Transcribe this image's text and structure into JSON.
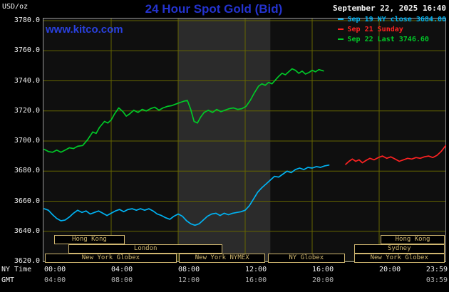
{
  "header": {
    "units_label": "USD/oz",
    "title": "24 Hour Spot Gold (Bid)",
    "datetime": "September 22, 2025 16:40",
    "watermark": "www.kitco.com",
    "legend": [
      {
        "label": "Sep 19 NY close 3684.00",
        "color": "#00b2f2"
      },
      {
        "label": "Sep 21 Sunday",
        "color": "#ff2222"
      },
      {
        "label": "Sep 22 Last 3746.60",
        "color": "#00c828"
      }
    ]
  },
  "colors": {
    "title_blue": "#2433cf",
    "link_blue": "#2940dd",
    "grid_olive": "#666600",
    "frame_gray": "#999999",
    "session_tan": "#cfb670",
    "plot_bg": "#0f0f0f",
    "nymex_band": "#2b2b2b",
    "text_white": "#f2f2f2",
    "gmt_gray": "#b4b4b4"
  },
  "chart_data": {
    "type": "line",
    "title": "24 Hour Spot Gold (Bid)",
    "ylabel": "USD/oz",
    "ylim": [
      3620,
      3780
    ],
    "y_tick_step": 20,
    "y_tick_labels": [
      "3780.0",
      "3760.0",
      "3740.0",
      "3720.0",
      "3700.0",
      "3680.0",
      "3660.0",
      "3640.0",
      "3620.0"
    ],
    "x_axis": {
      "ny_time_label": "NY Time",
      "gmt_label": "GMT",
      "ticks": [
        {
          "t": 0,
          "ny": "00:00",
          "gmt": "04:00"
        },
        {
          "t": 4,
          "ny": "04:00",
          "gmt": "08:00"
        },
        {
          "t": 8,
          "ny": "08:00",
          "gmt": "12:00"
        },
        {
          "t": 12,
          "ny": "12:00",
          "gmt": "16:00"
        },
        {
          "t": 16,
          "ny": "16:00",
          "gmt": "20:00"
        },
        {
          "t": 20,
          "ny": "20:00",
          "gmt": ""
        },
        {
          "t": 23.983,
          "ny": "23:59",
          "gmt": "03:59"
        }
      ]
    },
    "nymex_band_hours": [
      8.0,
      13.5
    ],
    "series": [
      {
        "name": "Sep 19 NY close 3684.00",
        "color": "#00b2f2",
        "points": [
          [
            0,
            3655
          ],
          [
            0.25,
            3654
          ],
          [
            0.5,
            3651
          ],
          [
            0.75,
            3648.5
          ],
          [
            1,
            3647
          ],
          [
            1.25,
            3647.5
          ],
          [
            1.5,
            3649.5
          ],
          [
            1.75,
            3652
          ],
          [
            2,
            3654
          ],
          [
            2.25,
            3652.5
          ],
          [
            2.5,
            3653.5
          ],
          [
            2.75,
            3651.5
          ],
          [
            3,
            3652.5
          ],
          [
            3.25,
            3653.5
          ],
          [
            3.5,
            3652
          ],
          [
            3.75,
            3650.5
          ],
          [
            4,
            3652
          ],
          [
            4.25,
            3653.5
          ],
          [
            4.5,
            3654.5
          ],
          [
            4.75,
            3653
          ],
          [
            5,
            3654.5
          ],
          [
            5.25,
            3655
          ],
          [
            5.5,
            3654
          ],
          [
            5.75,
            3655
          ],
          [
            6,
            3654
          ],
          [
            6.25,
            3655
          ],
          [
            6.5,
            3653.5
          ],
          [
            6.75,
            3651.5
          ],
          [
            7,
            3650.5
          ],
          [
            7.25,
            3649
          ],
          [
            7.5,
            3648
          ],
          [
            7.75,
            3650
          ],
          [
            8,
            3651.5
          ],
          [
            8.25,
            3650
          ],
          [
            8.5,
            3647
          ],
          [
            8.75,
            3645
          ],
          [
            9,
            3644
          ],
          [
            9.25,
            3645
          ],
          [
            9.5,
            3647.5
          ],
          [
            9.75,
            3650
          ],
          [
            10,
            3651.5
          ],
          [
            10.25,
            3652
          ],
          [
            10.5,
            3650.5
          ],
          [
            10.75,
            3652
          ],
          [
            11,
            3651
          ],
          [
            11.25,
            3652
          ],
          [
            11.5,
            3652.5
          ],
          [
            11.75,
            3653
          ],
          [
            12,
            3654
          ],
          [
            12.25,
            3657
          ],
          [
            12.5,
            3661.5
          ],
          [
            12.75,
            3666
          ],
          [
            13,
            3669
          ],
          [
            13.25,
            3671.5
          ],
          [
            13.5,
            3674
          ],
          [
            13.75,
            3676.5
          ],
          [
            14,
            3676
          ],
          [
            14.25,
            3678
          ],
          [
            14.5,
            3680
          ],
          [
            14.75,
            3679
          ],
          [
            15,
            3681
          ],
          [
            15.25,
            3682
          ],
          [
            15.5,
            3681
          ],
          [
            15.75,
            3682.5
          ],
          [
            16,
            3682
          ],
          [
            16.25,
            3683
          ],
          [
            16.5,
            3682.5
          ],
          [
            16.75,
            3683.5
          ],
          [
            17,
            3684
          ]
        ]
      },
      {
        "name": "Sep 21 Sunday",
        "color": "#ff2222",
        "points": [
          [
            18,
            3684.5
          ],
          [
            18.2,
            3686.5
          ],
          [
            18.4,
            3688
          ],
          [
            18.6,
            3686.5
          ],
          [
            18.8,
            3687.5
          ],
          [
            19,
            3685.5
          ],
          [
            19.2,
            3687
          ],
          [
            19.45,
            3688.5
          ],
          [
            19.7,
            3687.5
          ],
          [
            19.95,
            3689
          ],
          [
            20.2,
            3690
          ],
          [
            20.45,
            3688.5
          ],
          [
            20.7,
            3689.5
          ],
          [
            20.95,
            3688
          ],
          [
            21.2,
            3686.5
          ],
          [
            21.45,
            3687.5
          ],
          [
            21.7,
            3688.5
          ],
          [
            21.95,
            3688
          ],
          [
            22.2,
            3689
          ],
          [
            22.45,
            3688.5
          ],
          [
            22.7,
            3689.5
          ],
          [
            22.95,
            3690
          ],
          [
            23.2,
            3689
          ],
          [
            23.45,
            3690.5
          ],
          [
            23.7,
            3693
          ],
          [
            23.98,
            3697
          ]
        ]
      },
      {
        "name": "Sep 22 Last 3746.60",
        "color": "#00c828",
        "points": [
          [
            0,
            3694.5
          ],
          [
            0.25,
            3693
          ],
          [
            0.5,
            3692.5
          ],
          [
            0.75,
            3694
          ],
          [
            1,
            3692.5
          ],
          [
            1.25,
            3694
          ],
          [
            1.5,
            3695.5
          ],
          [
            1.75,
            3695
          ],
          [
            2,
            3696.5
          ],
          [
            2.3,
            3697
          ],
          [
            2.6,
            3701
          ],
          [
            2.9,
            3706
          ],
          [
            3.1,
            3705
          ],
          [
            3.3,
            3709
          ],
          [
            3.6,
            3713
          ],
          [
            3.8,
            3712
          ],
          [
            4,
            3714
          ],
          [
            4.2,
            3718
          ],
          [
            4.45,
            3722
          ],
          [
            4.7,
            3719.5
          ],
          [
            4.9,
            3716.5
          ],
          [
            5.1,
            3718
          ],
          [
            5.35,
            3720.5
          ],
          [
            5.6,
            3719
          ],
          [
            5.85,
            3721
          ],
          [
            6.1,
            3720
          ],
          [
            6.35,
            3721.5
          ],
          [
            6.6,
            3722.5
          ],
          [
            6.85,
            3720.5
          ],
          [
            7.1,
            3722
          ],
          [
            7.35,
            3723
          ],
          [
            7.6,
            3723.5
          ],
          [
            7.85,
            3724.5
          ],
          [
            8.1,
            3725.5
          ],
          [
            8.35,
            3726.5
          ],
          [
            8.55,
            3727
          ],
          [
            8.75,
            3721
          ],
          [
            8.95,
            3713
          ],
          [
            9.15,
            3712
          ],
          [
            9.35,
            3716
          ],
          [
            9.55,
            3719
          ],
          [
            9.8,
            3720.5
          ],
          [
            10.05,
            3719
          ],
          [
            10.3,
            3721
          ],
          [
            10.55,
            3719.5
          ],
          [
            10.8,
            3720.5
          ],
          [
            11.05,
            3721.5
          ],
          [
            11.3,
            3722
          ],
          [
            11.55,
            3721
          ],
          [
            11.8,
            3721.5
          ],
          [
            12.05,
            3723
          ],
          [
            12.3,
            3727
          ],
          [
            12.55,
            3732
          ],
          [
            12.8,
            3736.5
          ],
          [
            13,
            3738
          ],
          [
            13.2,
            3737
          ],
          [
            13.4,
            3739
          ],
          [
            13.6,
            3738
          ],
          [
            13.8,
            3740.5
          ],
          [
            14,
            3743
          ],
          [
            14.2,
            3745
          ],
          [
            14.4,
            3744
          ],
          [
            14.6,
            3746
          ],
          [
            14.8,
            3748
          ],
          [
            15,
            3747
          ],
          [
            15.2,
            3745
          ],
          [
            15.4,
            3746.5
          ],
          [
            15.6,
            3744.5
          ],
          [
            15.8,
            3745.5
          ],
          [
            16,
            3747
          ],
          [
            16.2,
            3746
          ],
          [
            16.4,
            3747.5
          ],
          [
            16.67,
            3746.6
          ]
        ]
      }
    ],
    "sessions": [
      {
        "row": 1,
        "label": "Hong Kong",
        "start_hour": 0.6,
        "end_hour": 4.8
      },
      {
        "row": 1,
        "label": "Hong Kong",
        "start_hour": 20.1,
        "end_hour": 23.9
      },
      {
        "row": 2,
        "label": "London",
        "start_hour": 1.45,
        "end_hour": 10.65
      },
      {
        "row": 2,
        "label": "Sydney",
        "start_hour": 18.5,
        "end_hour": 23.9
      },
      {
        "row": 3,
        "label": "New York Globex",
        "start_hour": 0.05,
        "end_hour": 7.9
      },
      {
        "row": 3,
        "label": "New York NYMEX",
        "start_hour": 8.05,
        "end_hour": 13.2
      },
      {
        "row": 3,
        "label": "NY Globex",
        "start_hour": 13.35,
        "end_hour": 17.95
      },
      {
        "row": 3,
        "label": "New York Globex",
        "start_hour": 18.5,
        "end_hour": 23.9
      }
    ]
  }
}
